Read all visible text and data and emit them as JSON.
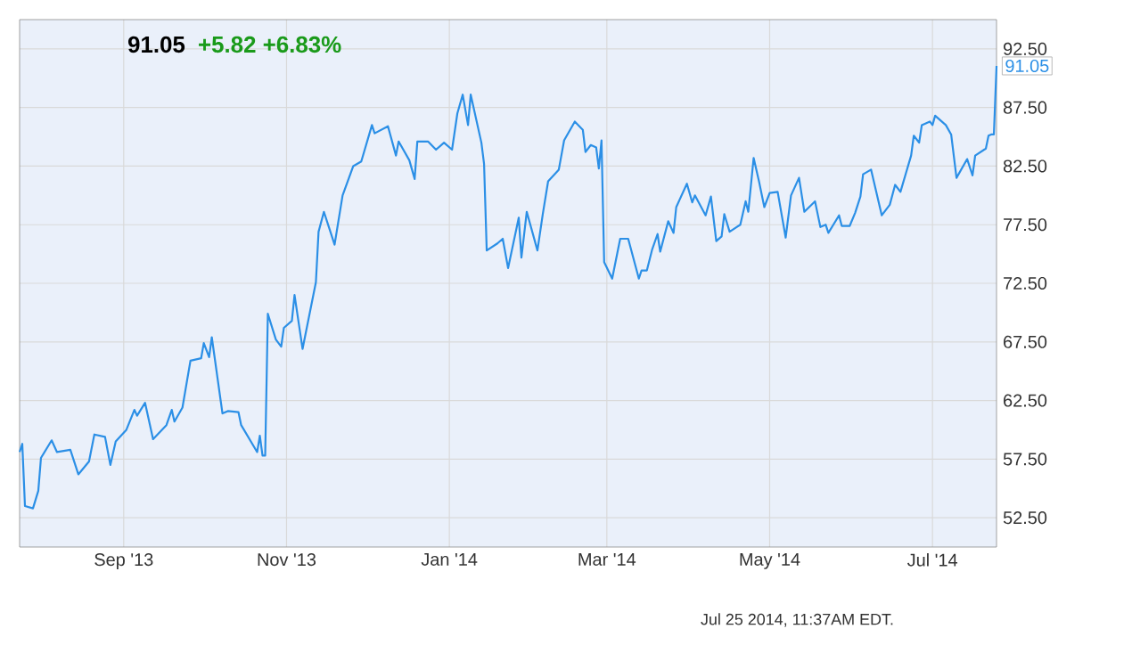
{
  "chart_data": {
    "type": "line",
    "title": "91.05",
    "subtitle": "+5.82 +6.83%",
    "color": "#2b8fe6",
    "line_style": "solid",
    "grid": true,
    "xlim": [
      "2013-07-24",
      "2014-07-25"
    ],
    "ylim": [
      50,
      95
    ],
    "xticks": [
      {
        "value": "2013-09-01",
        "label": "Sep '13"
      },
      {
        "value": "2013-11-01",
        "label": "Nov '13"
      },
      {
        "value": "2014-01-01",
        "label": "Jan '14"
      },
      {
        "value": "2014-03-01",
        "label": "Mar '14"
      },
      {
        "value": "2014-05-01",
        "label": "May '14"
      },
      {
        "value": "2014-07-01",
        "label": "Jul '14"
      }
    ],
    "yticks": [
      {
        "value": 52.5,
        "label": "52.50"
      },
      {
        "value": 57.5,
        "label": "57.50"
      },
      {
        "value": 62.5,
        "label": "62.50"
      },
      {
        "value": 67.5,
        "label": "67.50"
      },
      {
        "value": 72.5,
        "label": "72.50"
      },
      {
        "value": 77.5,
        "label": "77.50"
      },
      {
        "value": 82.5,
        "label": "82.50"
      },
      {
        "value": 87.5,
        "label": "87.50"
      },
      {
        "value": 92.5,
        "label": "92.50"
      }
    ],
    "x": [
      "2013-07-24",
      "2013-07-25",
      "2013-07-26",
      "2013-07-29",
      "2013-07-31",
      "2013-08-01",
      "2013-08-05",
      "2013-08-07",
      "2013-08-12",
      "2013-08-15",
      "2013-08-19",
      "2013-08-21",
      "2013-08-25",
      "2013-08-27",
      "2013-08-29",
      "2013-09-02",
      "2013-09-05",
      "2013-09-06",
      "2013-09-09",
      "2013-09-12",
      "2013-09-17",
      "2013-09-19",
      "2013-09-20",
      "2013-09-23",
      "2013-09-26",
      "2013-09-30",
      "2013-10-01",
      "2013-10-03",
      "2013-10-04",
      "2013-10-08",
      "2013-10-10",
      "2013-10-14",
      "2013-10-15",
      "2013-10-21",
      "2013-10-22",
      "2013-10-23",
      "2013-10-24",
      "2013-10-25",
      "2013-10-28",
      "2013-10-30",
      "2013-10-31",
      "2013-11-03",
      "2013-11-04",
      "2013-11-07",
      "2013-11-12",
      "2013-11-13",
      "2013-11-15",
      "2013-11-19",
      "2013-11-22",
      "2013-11-26",
      "2013-11-29",
      "2013-12-03",
      "2013-12-04",
      "2013-12-09",
      "2013-12-12",
      "2013-12-13",
      "2013-12-17",
      "2013-12-19",
      "2013-12-20",
      "2013-12-24",
      "2013-12-27",
      "2013-12-30",
      "2014-01-02",
      "2014-01-04",
      "2014-01-06",
      "2014-01-08",
      "2014-01-09",
      "2014-01-13",
      "2014-01-14",
      "2014-01-15",
      "2014-01-19",
      "2014-01-21",
      "2014-01-23",
      "2014-01-27",
      "2014-01-28",
      "2014-01-30",
      "2014-02-03",
      "2014-02-05",
      "2014-02-07",
      "2014-02-11",
      "2014-02-13",
      "2014-02-17",
      "2014-02-20",
      "2014-02-21",
      "2014-02-23",
      "2014-02-25",
      "2014-02-26",
      "2014-02-27",
      "2014-02-28",
      "2014-03-03",
      "2014-03-06",
      "2014-03-09",
      "2014-03-13",
      "2014-03-14",
      "2014-03-16",
      "2014-03-18",
      "2014-03-20",
      "2014-03-21",
      "2014-03-24",
      "2014-03-26",
      "2014-03-27",
      "2014-03-31",
      "2014-04-02",
      "2014-04-03",
      "2014-04-07",
      "2014-04-09",
      "2014-04-11",
      "2014-04-13",
      "2014-04-14",
      "2014-04-16",
      "2014-04-20",
      "2014-04-22",
      "2014-04-23",
      "2014-04-25",
      "2014-04-27",
      "2014-04-29",
      "2014-05-01",
      "2014-05-04",
      "2014-05-07",
      "2014-05-09",
      "2014-05-12",
      "2014-05-14",
      "2014-05-18",
      "2014-05-20",
      "2014-05-22",
      "2014-05-23",
      "2014-05-27",
      "2014-05-28",
      "2014-05-31",
      "2014-06-02",
      "2014-06-04",
      "2014-06-05",
      "2014-06-08",
      "2014-06-12",
      "2014-06-15",
      "2014-06-17",
      "2014-06-19",
      "2014-06-23",
      "2014-06-24",
      "2014-06-26",
      "2014-06-27",
      "2014-06-30",
      "2014-07-01",
      "2014-07-02",
      "2014-07-06",
      "2014-07-08",
      "2014-07-10",
      "2014-07-14",
      "2014-07-16",
      "2014-07-17",
      "2014-07-21",
      "2014-07-22",
      "2014-07-23",
      "2014-07-24",
      "2014-07-25"
    ],
    "values": [
      58.1,
      58.8,
      53.5,
      53.3,
      54.8,
      57.6,
      59.1,
      58.1,
      58.3,
      56.2,
      57.3,
      59.6,
      59.4,
      57.0,
      59.0,
      60.0,
      61.7,
      61.2,
      62.3,
      59.2,
      60.4,
      61.7,
      60.7,
      61.9,
      65.9,
      66.1,
      67.4,
      66.2,
      67.9,
      61.4,
      61.6,
      61.5,
      60.4,
      58.1,
      59.5,
      57.8,
      57.8,
      69.9,
      67.7,
      67.1,
      68.7,
      69.3,
      71.5,
      66.9,
      72.6,
      76.9,
      78.6,
      75.8,
      80.0,
      82.5,
      82.9,
      86.0,
      85.3,
      85.9,
      83.4,
      84.6,
      83.0,
      81.4,
      84.6,
      84.6,
      83.9,
      84.5,
      83.9,
      87.0,
      88.6,
      86.0,
      88.6,
      84.5,
      82.7,
      75.3,
      75.9,
      76.3,
      73.8,
      78.1,
      74.7,
      78.6,
      75.3,
      78.4,
      81.2,
      82.2,
      84.7,
      86.3,
      85.6,
      83.7,
      84.3,
      84.1,
      82.3,
      84.7,
      74.3,
      72.9,
      76.3,
      76.3,
      72.9,
      73.6,
      73.6,
      75.4,
      76.7,
      75.2,
      77.8,
      76.8,
      79.0,
      81.0,
      79.4,
      80.0,
      78.3,
      79.9,
      76.1,
      76.5,
      78.4,
      76.9,
      77.5,
      79.5,
      78.6,
      83.2,
      81.2,
      79.0,
      80.2,
      80.3,
      76.4,
      80.0,
      81.5,
      78.6,
      79.5,
      77.3,
      77.5,
      76.8,
      78.3,
      77.4,
      77.4,
      78.5,
      79.9,
      81.8,
      82.2,
      78.3,
      79.2,
      80.9,
      80.3,
      83.4,
      85.1,
      84.5,
      86.0,
      86.3,
      86.0,
      86.8,
      86.0,
      85.2,
      81.5,
      83.1,
      81.7,
      83.4,
      84.0,
      85.1,
      85.2,
      85.2,
      91.05
    ],
    "annotations": [
      {
        "text": "91.05",
        "x": "2014-07-25",
        "y": 91.05
      },
      "Jul 25 2014, 11:37AM EDT."
    ]
  }
}
